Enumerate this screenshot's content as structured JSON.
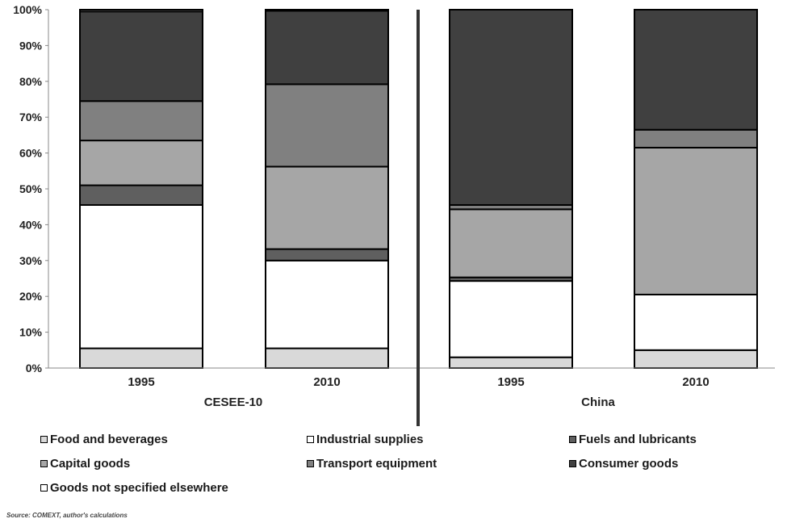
{
  "chart_data": {
    "type": "stacked_bar",
    "ylim": [
      0,
      100
    ],
    "yticks": [
      "0%",
      "10%",
      "20%",
      "30%",
      "40%",
      "50%",
      "60%",
      "70%",
      "80%",
      "90%",
      "100%"
    ],
    "groups": [
      "CESEE-10",
      "China"
    ],
    "categories": [
      "1995",
      "2010",
      "1995",
      "2010"
    ],
    "bar_group": [
      0,
      0,
      1,
      1
    ],
    "series": [
      {
        "name": "Food and beverages",
        "color": "#d9d9d9",
        "values": [
          5.5,
          5.5,
          3,
          5
        ]
      },
      {
        "name": "Industrial supplies",
        "color": "#ffffff",
        "values": [
          40,
          24.5,
          21.3,
          15.5
        ]
      },
      {
        "name": "Fuels and lubricants",
        "color": "#5f5f5f",
        "values": [
          5.5,
          3.2,
          1,
          0
        ]
      },
      {
        "name": "Capital goods",
        "color": "#a6a6a6",
        "values": [
          12.5,
          23,
          19,
          41
        ]
      },
      {
        "name": "Transport equipment",
        "color": "#808080",
        "values": [
          11,
          23,
          1.2,
          5
        ]
      },
      {
        "name": "Consumer goods",
        "color": "#404040",
        "values": [
          25,
          20.5,
          54.5,
          33.5
        ]
      },
      {
        "name": "Goods not specified elsewhere",
        "color": "#ffffff",
        "values": [
          0.5,
          0.3,
          0,
          0
        ]
      }
    ],
    "legend_position": "bottom",
    "grid": false
  },
  "legend_layout_order": [
    0,
    1,
    2,
    3,
    4,
    5,
    6
  ],
  "source": "Source: COMEXT, author's calculations"
}
